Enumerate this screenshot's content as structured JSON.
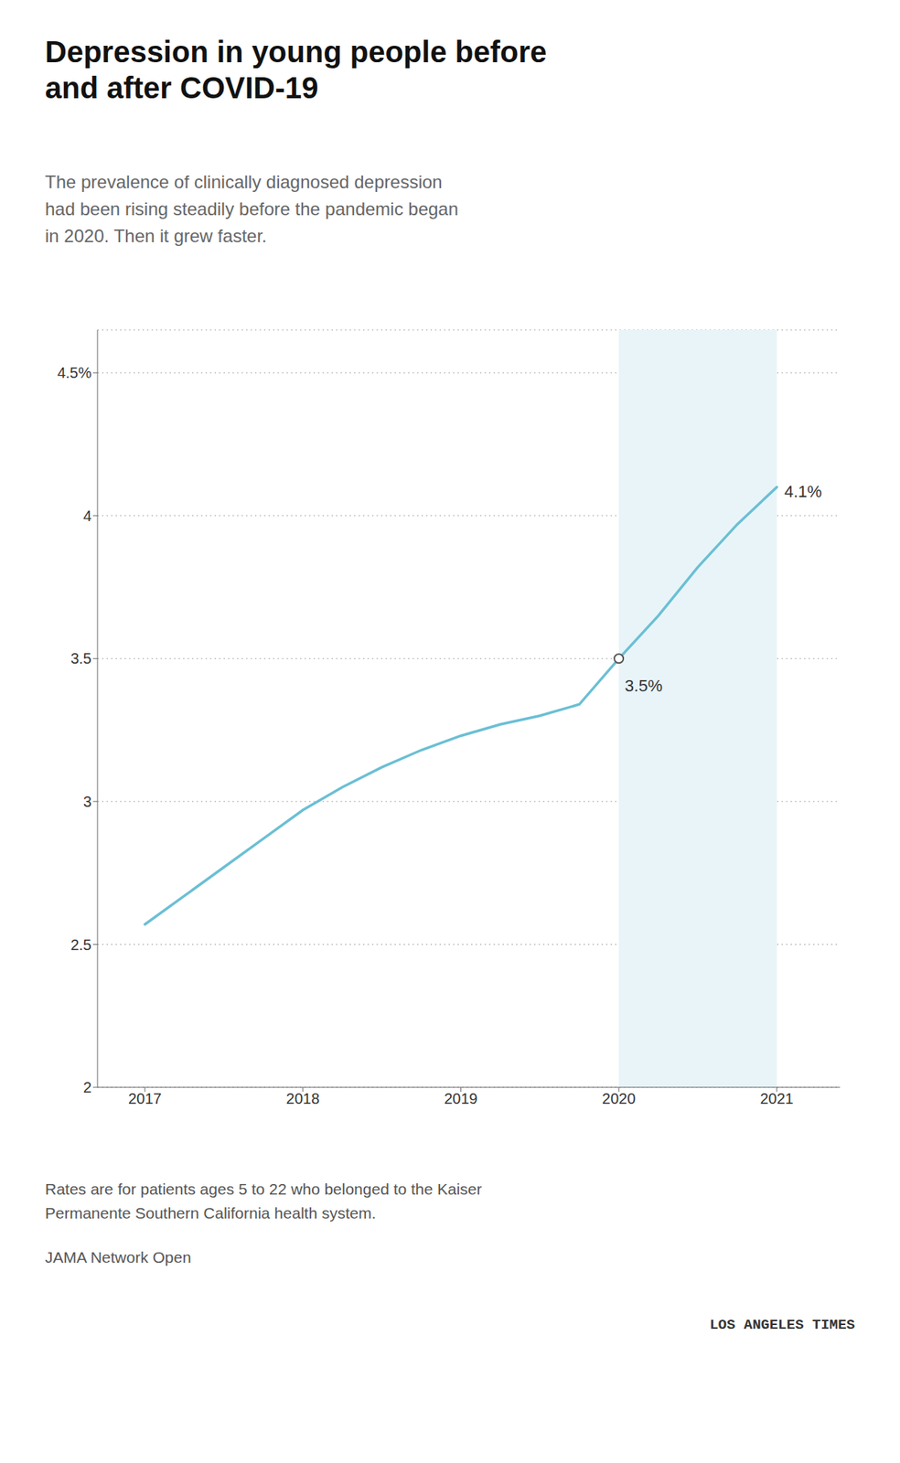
{
  "chart_data": {
    "type": "line",
    "title": "Depression in young people before\nand after COVID-19",
    "subtitle": "The prevalence of clinically diagnosed depression\nhad been rising steadily before the pandemic began\nin 2020. Then it grew faster.",
    "x": [
      2017,
      2017.25,
      2017.5,
      2017.75,
      2018,
      2018.25,
      2018.5,
      2018.75,
      2019,
      2019.25,
      2019.5,
      2019.75,
      2020,
      2020.25,
      2020.5,
      2020.75,
      2021
    ],
    "values": [
      2.57,
      2.67,
      2.77,
      2.87,
      2.97,
      3.05,
      3.12,
      3.18,
      3.23,
      3.27,
      3.3,
      3.34,
      3.5,
      3.65,
      3.82,
      3.97,
      4.1
    ],
    "color": "#6bbfd4",
    "xlim": [
      2016.7,
      2021.4
    ],
    "ylim": [
      2.0,
      4.65
    ],
    "xticks": [
      2017,
      2018,
      2019,
      2020,
      2021
    ],
    "yticks": [
      2,
      2.5,
      3,
      3.5,
      4,
      {
        "value": 4.5,
        "label": "4.5%"
      }
    ],
    "grid": true,
    "shading": {
      "x": [
        2020,
        2021
      ],
      "color": "#e8f4f8"
    },
    "annotations": [
      {
        "x": 2020,
        "y": 3.5,
        "text": "3.5%",
        "marker": "circle"
      },
      {
        "x": 2021,
        "y": 4.1,
        "text": "4.1%"
      }
    ],
    "notes": [
      "Rates are for patients ages 5 to 22 who belonged to the Kaiser",
      "Permanente Southern California health system."
    ],
    "source": "JAMA Network Open",
    "branding": "LOS ANGELES TIMES"
  }
}
